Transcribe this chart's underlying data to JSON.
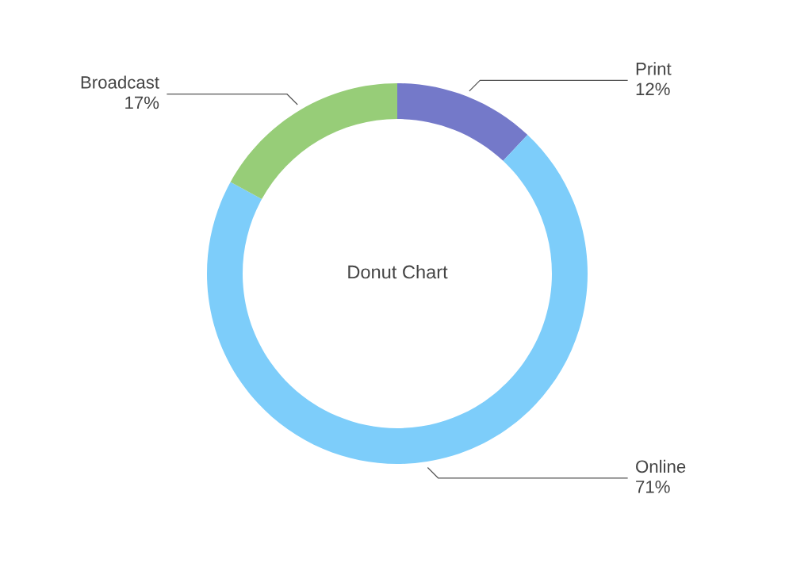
{
  "chart_data": {
    "type": "donut",
    "title": "Donut Chart",
    "categories": [
      "Print",
      "Online",
      "Broadcast"
    ],
    "values": [
      12,
      71,
      17
    ],
    "value_labels": [
      "12%",
      "71%",
      "17%"
    ],
    "colors": [
      "#7479c9",
      "#7dcdfa",
      "#97cd78"
    ],
    "legend": false
  }
}
